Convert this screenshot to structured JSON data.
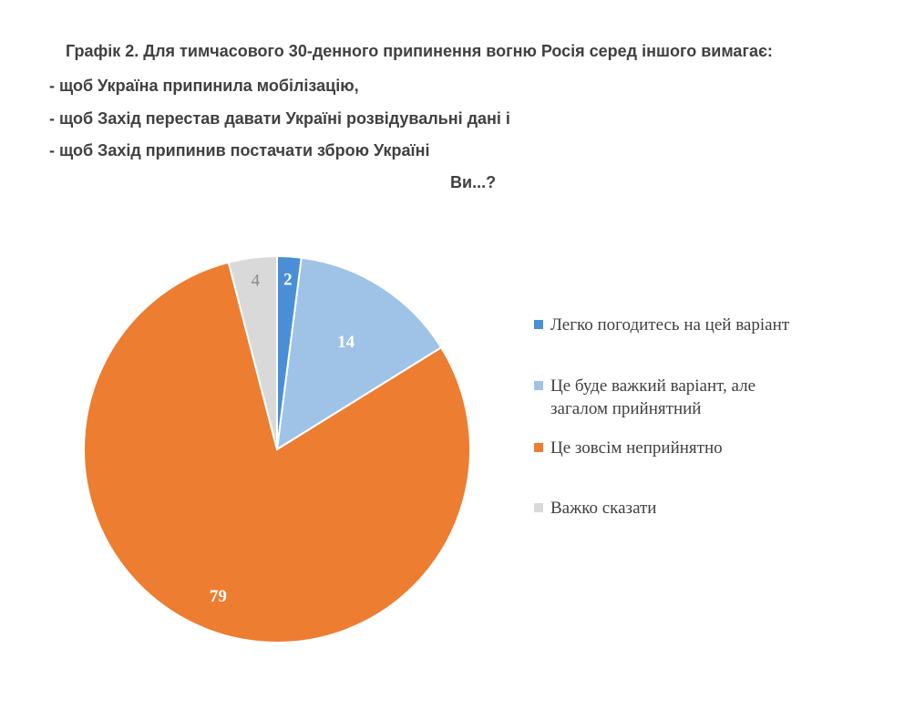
{
  "title_lines": [
    "Графік 2. Для тимчасового 30-денного припинення вогню Росія серед іншого вимагає:",
    "- щоб Україна припинила мобілізацію,",
    "- щоб Захід перестав давати Україні розвідувальні дані і",
    "- щоб Захід припинив постачати зброю Україні",
    "Ви...?"
  ],
  "chart_data": {
    "type": "pie",
    "slices": [
      {
        "label": "Легко погодитесь на цей варіант",
        "value": 2,
        "color": "#4a8fd6",
        "value_label_color": "#ffffff"
      },
      {
        "label": "Це буде важкий варіант, але загалом прийнятний",
        "value": 14,
        "color": "#9fc3e7",
        "value_label_color": "#ffffff"
      },
      {
        "label": "Це зовсім неприйнятно",
        "value": 79,
        "color": "#ed7d31",
        "value_label_color": "#ffffff"
      },
      {
        "label": "Важко сказати",
        "value": 4,
        "color": "#d9d9d9",
        "value_label_color": "#8a8a8a"
      }
    ],
    "start_angle": "12 o'clock",
    "direction": "clockwise",
    "legend_position": "right",
    "data_labels": true
  },
  "legend": {
    "items": [
      {
        "label_lines": [
          "Легко погодитесь на цей варіант"
        ],
        "color": "#4a8fd6"
      },
      {
        "label_lines": [
          "Це буде важкий варіант, але",
          "загалом прийнятний"
        ],
        "color": "#9fc3e7"
      },
      {
        "label_lines": [
          "Це зовсім неприйнятно"
        ],
        "color": "#ed7d31"
      },
      {
        "label_lines": [
          "Важко сказати"
        ],
        "color": "#d9d9d9"
      }
    ]
  }
}
